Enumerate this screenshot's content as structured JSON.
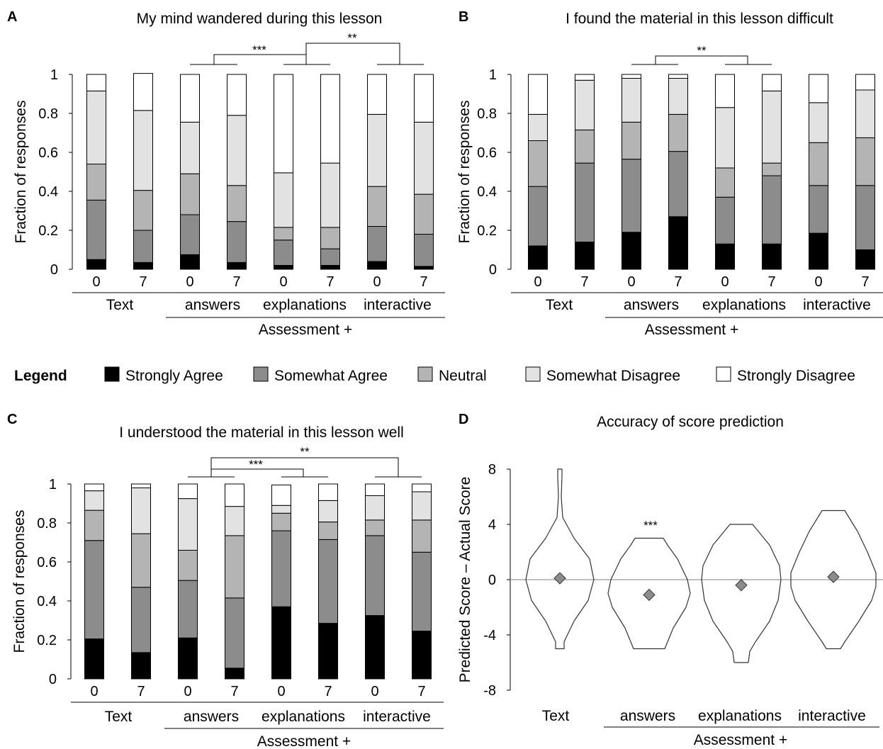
{
  "legend": {
    "title": "Legend",
    "items": [
      {
        "label": "Strongly Agree",
        "color": "#000000"
      },
      {
        "label": "Somewhat Agree",
        "color": "#8c8c8c"
      },
      {
        "label": "Neutral",
        "color": "#b4b4b4"
      },
      {
        "label": "Somewhat Disagree",
        "color": "#e2e2e2"
      },
      {
        "label": "Strongly Disagree",
        "color": "#ffffff"
      }
    ]
  },
  "chart_data": [
    {
      "panel": "A",
      "type": "bar",
      "stacked": true,
      "title": "My mind wandered during this lesson",
      "ylabel": "Fraction of responses",
      "ylim": [
        0,
        1
      ],
      "yticks": [
        "0",
        "0.2",
        "0.4",
        "0.6",
        "0.8",
        "1"
      ],
      "categories": [
        "0",
        "7",
        "0",
        "7",
        "0",
        "7",
        "0",
        "7"
      ],
      "groups": [
        "Text",
        "answers",
        "explanations",
        "interactive"
      ],
      "supergroup": "Assessment +",
      "significance": [
        "***",
        "**"
      ],
      "series": [
        {
          "name": "Strongly Agree",
          "values": [
            0.05,
            0.035,
            0.075,
            0.035,
            0.02,
            0.02,
            0.04,
            0.015
          ]
        },
        {
          "name": "Somewhat Agree",
          "values": [
            0.305,
            0.165,
            0.205,
            0.21,
            0.13,
            0.085,
            0.18,
            0.165
          ]
        },
        {
          "name": "Neutral",
          "values": [
            0.185,
            0.205,
            0.21,
            0.185,
            0.065,
            0.11,
            0.205,
            0.205
          ]
        },
        {
          "name": "Somewhat Disagree",
          "values": [
            0.375,
            0.41,
            0.265,
            0.36,
            0.28,
            0.33,
            0.37,
            0.37
          ]
        },
        {
          "name": "Strongly Disagree",
          "values": [
            0.085,
            0.19,
            0.245,
            0.21,
            0.505,
            0.455,
            0.205,
            0.245
          ]
        }
      ]
    },
    {
      "panel": "B",
      "type": "bar",
      "stacked": true,
      "title": "I found the material in this lesson difficult",
      "ylabel": "Fraction of responses",
      "ylim": [
        0,
        1
      ],
      "yticks": [
        "0",
        "0.2",
        "0.4",
        "0.6",
        "0.8",
        "1"
      ],
      "categories": [
        "0",
        "7",
        "0",
        "7",
        "0",
        "7",
        "0",
        "7"
      ],
      "groups": [
        "Text",
        "answers",
        "explanations",
        "interactive"
      ],
      "supergroup": "Assessment +",
      "significance": [
        "**"
      ],
      "series": [
        {
          "name": "Strongly Agree",
          "values": [
            0.12,
            0.14,
            0.19,
            0.27,
            0.13,
            0.13,
            0.185,
            0.1
          ]
        },
        {
          "name": "Somewhat Agree",
          "values": [
            0.305,
            0.405,
            0.375,
            0.335,
            0.24,
            0.35,
            0.245,
            0.33
          ]
        },
        {
          "name": "Neutral",
          "values": [
            0.235,
            0.17,
            0.19,
            0.19,
            0.15,
            0.065,
            0.22,
            0.245
          ]
        },
        {
          "name": "Somewhat Disagree",
          "values": [
            0.135,
            0.255,
            0.225,
            0.185,
            0.31,
            0.37,
            0.205,
            0.245
          ]
        },
        {
          "name": "Strongly Disagree",
          "values": [
            0.205,
            0.03,
            0.02,
            0.02,
            0.17,
            0.085,
            0.145,
            0.08
          ]
        }
      ]
    },
    {
      "panel": "C",
      "type": "bar",
      "stacked": true,
      "title": "I understood the material in this lesson well",
      "ylabel": "Fraction of responses",
      "ylim": [
        0,
        1
      ],
      "yticks": [
        "0",
        "0.2",
        "0.4",
        "0.6",
        "0.8",
        "1"
      ],
      "categories": [
        "0",
        "7",
        "0",
        "7",
        "0",
        "7",
        "0",
        "7"
      ],
      "groups": [
        "Text",
        "answers",
        "explanations",
        "interactive"
      ],
      "supergroup": "Assessment +",
      "significance": [
        "***",
        "**"
      ],
      "series": [
        {
          "name": "Strongly Agree",
          "values": [
            0.205,
            0.135,
            0.21,
            0.055,
            0.37,
            0.285,
            0.325,
            0.245
          ]
        },
        {
          "name": "Somewhat Agree",
          "values": [
            0.505,
            0.335,
            0.295,
            0.36,
            0.39,
            0.43,
            0.41,
            0.405
          ]
        },
        {
          "name": "Neutral",
          "values": [
            0.155,
            0.275,
            0.155,
            0.32,
            0.09,
            0.09,
            0.08,
            0.165
          ]
        },
        {
          "name": "Somewhat Disagree",
          "values": [
            0.1,
            0.235,
            0.265,
            0.15,
            0.04,
            0.11,
            0.125,
            0.145
          ]
        },
        {
          "name": "Strongly Disagree",
          "values": [
            0.035,
            0.02,
            0.075,
            0.115,
            0.105,
            0.085,
            0.06,
            0.04
          ]
        }
      ]
    },
    {
      "panel": "D",
      "type": "violin",
      "title": "Accuracy of score prediction",
      "ylabel": "Predicted Score – Actual Score",
      "ylim": [
        -8,
        8
      ],
      "yticks": [
        "8",
        "4",
        "0",
        "-4",
        "-8"
      ],
      "categories": [
        "Text",
        "answers",
        "explanations",
        "interactive"
      ],
      "supergroup": "Assessment +",
      "means": [
        0.1,
        -1.1,
        -0.4,
        0.2
      ],
      "ranges": [
        [
          -5,
          8
        ],
        [
          -5,
          3
        ],
        [
          -6,
          4
        ],
        [
          -5,
          5
        ]
      ],
      "significance": [
        "***"
      ]
    }
  ]
}
